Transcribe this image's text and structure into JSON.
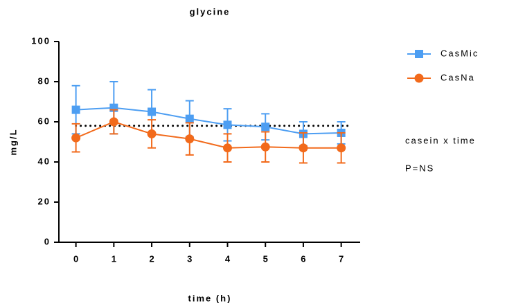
{
  "chart_data": {
    "type": "line",
    "title": "glycine",
    "x_label": "time (h)",
    "y_label": "mg/L",
    "x": [
      0,
      1,
      2,
      3,
      4,
      5,
      6,
      7
    ],
    "series": [
      {
        "name": "CasMic",
        "color": "#4d9ef2",
        "marker": "square",
        "values": [
          66,
          67,
          65,
          61.5,
          58.5,
          57.5,
          54,
          54.5
        ],
        "errors": [
          12,
          13,
          11,
          9,
          8,
          6.5,
          6,
          5.5
        ]
      },
      {
        "name": "CasNa",
        "color": "#f26a1b",
        "marker": "circle",
        "values": [
          52,
          60,
          54,
          51.5,
          47,
          47.5,
          47,
          47
        ],
        "errors": [
          7,
          6,
          7,
          8,
          7,
          7.5,
          7.5,
          7.5
        ]
      }
    ],
    "reference_line": 58,
    "annotations": [
      "casein x time",
      "P=NS"
    ],
    "xlim": [
      -0.45,
      7.5
    ],
    "xticks": [
      0,
      1,
      2,
      3,
      4,
      5,
      6,
      7
    ],
    "ylim": [
      0,
      100
    ],
    "yticks": [
      0,
      20,
      40,
      60,
      80,
      100
    ]
  }
}
